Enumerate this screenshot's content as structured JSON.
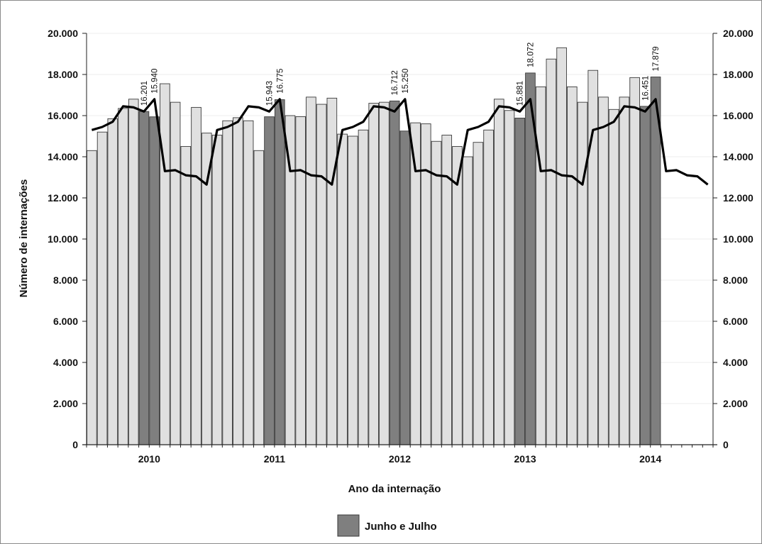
{
  "chart_data": {
    "type": "bar",
    "xlabel": "Ano da internação",
    "ylabel": "Número de internações",
    "ylim": [
      0,
      20000
    ],
    "y_ticks": [
      "0",
      "2.000",
      "4.000",
      "6.000",
      "8.000",
      "10.000",
      "12.000",
      "14.000",
      "16.000",
      "18.000",
      "20.000"
    ],
    "y_ticks_right": [
      "0",
      "2.000",
      "4.000",
      "6.000",
      "8.000",
      "10.000",
      "12.000",
      "14.000",
      "16.000",
      "18.000",
      "20.000"
    ],
    "year_labels": [
      {
        "label": "2010",
        "index": 6
      },
      {
        "label": "2011",
        "index": 18
      },
      {
        "label": "2012",
        "index": 30
      },
      {
        "label": "2013",
        "index": 42
      },
      {
        "label": "2014",
        "index": 54
      }
    ],
    "months_total": 60,
    "bar_values": [
      14300,
      15200,
      15850,
      16350,
      16800,
      16201,
      15940,
      17550,
      16650,
      14500,
      16400,
      15150,
      15050,
      15750,
      15900,
      15750,
      14300,
      15943,
      16775,
      16000,
      15950,
      16900,
      16550,
      16850,
      15100,
      15000,
      15300,
      16600,
      16650,
      16712,
      15250,
      15650,
      15600,
      14750,
      15050,
      14500,
      14000,
      14700,
      15300,
      16800,
      16250,
      15881,
      18072,
      17400,
      18750,
      19300,
      17400,
      16650,
      18200,
      16900,
      16300,
      16900,
      17850,
      16451,
      17879,
      0,
      0,
      0,
      0,
      0
    ],
    "highlight_indices": [
      5,
      6,
      17,
      18,
      29,
      30,
      41,
      42,
      53,
      54
    ],
    "line_values": [
      15300,
      15450,
      15700,
      16450,
      16400,
      16200,
      16800,
      13300,
      13350,
      13100,
      13050,
      12650,
      15300,
      15450,
      15700,
      16450,
      16400,
      16200,
      16800,
      13300,
      13350,
      13100,
      13050,
      12650,
      15300,
      15450,
      15700,
      16450,
      16400,
      16200,
      16800,
      13300,
      13350,
      13100,
      13050,
      12650,
      15300,
      15450,
      15700,
      16450,
      16400,
      16200,
      16800,
      13300,
      13350,
      13100,
      13050,
      12650,
      15300,
      15450,
      15700,
      16450,
      16400,
      16200,
      16800,
      13300,
      13350,
      13100,
      13050,
      12650
    ],
    "data_labels": [
      {
        "index": 5,
        "text": "16.201"
      },
      {
        "index": 6,
        "text": "15.940"
      },
      {
        "index": 17,
        "text": "15.943"
      },
      {
        "index": 18,
        "text": "16.775"
      },
      {
        "index": 29,
        "text": "16.712"
      },
      {
        "index": 30,
        "text": "15.250"
      },
      {
        "index": 41,
        "text": "15.881"
      },
      {
        "index": 42,
        "text": "18.072"
      },
      {
        "index": 53,
        "text": "16.451"
      },
      {
        "index": 54,
        "text": "17.879"
      }
    ],
    "legend": {
      "label": "Junho e Julho",
      "placement": "bottom-center"
    },
    "colors": {
      "bar": "#e0e0e0",
      "bar_highlight": "#7f7f7f",
      "bar_stroke": "#3a3a3a",
      "line": "#000000",
      "grid": "#eeeeee"
    },
    "grid": true
  }
}
